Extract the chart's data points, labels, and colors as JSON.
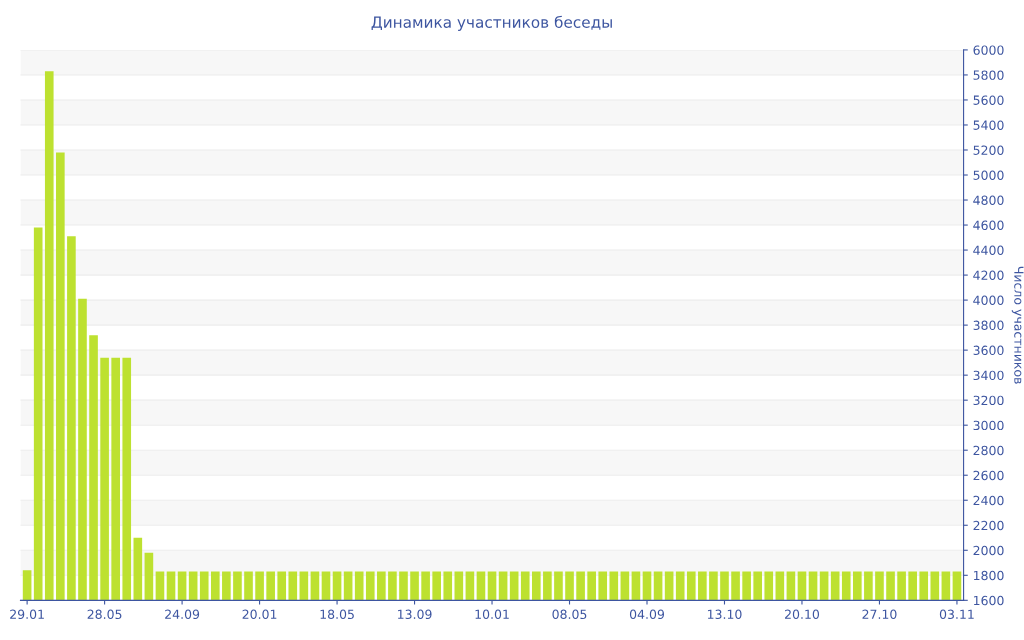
{
  "chart_data": {
    "type": "bar",
    "title": "Динамика участников беседы",
    "ylabel": "Число участников",
    "categories": [
      "29.01",
      null,
      null,
      null,
      null,
      null,
      null,
      "28.05",
      null,
      null,
      null,
      null,
      null,
      null,
      "24.09",
      null,
      null,
      null,
      null,
      null,
      null,
      "20.01",
      null,
      null,
      null,
      null,
      null,
      null,
      "18.05",
      null,
      null,
      null,
      null,
      null,
      null,
      "13.09",
      null,
      null,
      null,
      null,
      null,
      null,
      "10.01",
      null,
      null,
      null,
      null,
      null,
      null,
      "08.05",
      null,
      null,
      null,
      null,
      null,
      null,
      "04.09",
      null,
      null,
      null,
      null,
      null,
      null,
      "13.10",
      null,
      null,
      null,
      null,
      null,
      null,
      "20.10",
      null,
      null,
      null,
      null,
      null,
      null,
      "27.10",
      null,
      null,
      null,
      null,
      null,
      null,
      "03.11"
    ],
    "values": [
      1840,
      4580,
      5830,
      5180,
      4510,
      4010,
      3720,
      3540,
      3540,
      3540,
      2100,
      1980,
      1830,
      1830,
      1830,
      1830,
      1830,
      1830,
      1830,
      1830,
      1830,
      1830,
      1830,
      1830,
      1830,
      1830,
      1830,
      1830,
      1830,
      1830,
      1830,
      1830,
      1830,
      1830,
      1830,
      1830,
      1830,
      1830,
      1830,
      1830,
      1830,
      1830,
      1830,
      1830,
      1830,
      1830,
      1830,
      1830,
      1830,
      1830,
      1830,
      1830,
      1830,
      1830,
      1830,
      1830,
      1830,
      1830,
      1830,
      1830,
      1830,
      1830,
      1830,
      1830,
      1830,
      1830,
      1830,
      1830,
      1830,
      1830,
      1830,
      1830,
      1830,
      1830,
      1830,
      1830,
      1830,
      1830,
      1830,
      1830,
      1830,
      1830,
      1830,
      1830,
      1830
    ],
    "color": "#bde130",
    "ylim": [
      1600,
      6000
    ],
    "yticks": [
      1600,
      1800,
      2000,
      2200,
      2400,
      2600,
      2800,
      3000,
      3200,
      3400,
      3600,
      3800,
      4000,
      4200,
      4400,
      4600,
      4800,
      5000,
      5200,
      5400,
      5600,
      5800,
      6000
    ],
    "grid": "y",
    "legend": false
  }
}
